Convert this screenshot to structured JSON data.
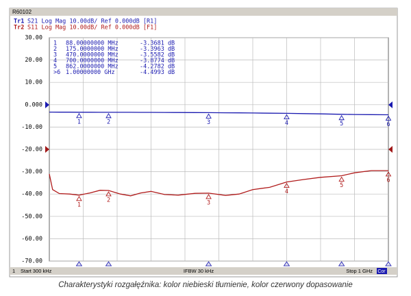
{
  "chart_data": {
    "type": "line",
    "instrument_title": "R60102",
    "trace_headers": [
      {
        "id": "Tr1",
        "text": "S21 Log Mag 10.00dB/ Ref 0.000dB [R1]",
        "color": "#1a1ab0"
      },
      {
        "id": "Tr2",
        "text": "S11 Log Mag 10.00dB/ Ref 0.000dB [F1]",
        "color": "#b01a1a"
      }
    ],
    "xlim": [
      0.3,
      1000
    ],
    "ylim": [
      -70,
      30
    ],
    "yticks": [
      {
        "value": 30,
        "label": "30.00"
      },
      {
        "value": 20,
        "label": "20.00"
      },
      {
        "value": 10,
        "label": "10.00"
      },
      {
        "value": 0,
        "label": "0.000"
      },
      {
        "value": -10,
        "label": "-10.00"
      },
      {
        "value": -20,
        "label": "-20.00"
      },
      {
        "value": -30,
        "label": "-30.00"
      },
      {
        "value": -40,
        "label": "-40.00"
      },
      {
        "value": -50,
        "label": "-50.00"
      },
      {
        "value": -60,
        "label": "-60.00"
      },
      {
        "value": -70,
        "label": "-70.00"
      }
    ],
    "grid": true,
    "x": [
      0.3,
      10,
      30,
      60,
      88,
      120,
      150,
      175,
      210,
      240,
      270,
      300,
      340,
      380,
      430,
      470,
      520,
      560,
      600,
      650,
      700,
      750,
      800,
      862,
      900,
      950,
      1000
    ],
    "series": [
      {
        "name": "S21",
        "color": "#1a1ab0",
        "values": [
          -3.3,
          -3.31,
          -3.33,
          -3.35,
          -3.37,
          -3.38,
          -3.39,
          -3.4,
          -3.41,
          -3.42,
          -3.44,
          -3.45,
          -3.48,
          -3.5,
          -3.53,
          -3.56,
          -3.61,
          -3.66,
          -3.72,
          -3.8,
          -3.88,
          -3.98,
          -4.12,
          -4.28,
          -4.38,
          -4.45,
          -4.5
        ]
      },
      {
        "name": "S11",
        "color": "#b01a1a",
        "values": [
          -31,
          -38,
          -39.8,
          -40,
          -40.5,
          -39.5,
          -38.3,
          -38.4,
          -40,
          -40.8,
          -39.5,
          -38.8,
          -40.2,
          -40.5,
          -39.7,
          -39.6,
          -40.6,
          -40,
          -38,
          -37,
          -34.6,
          -33.5,
          -32.5,
          -31.8,
          -30.5,
          -29.5,
          -29.5
        ]
      }
    ],
    "markers": {
      "ids": [
        "1",
        "2",
        "3",
        "4",
        "5",
        ">6"
      ],
      "tags": [
        "1",
        "2",
        "3",
        "4",
        "5",
        "6"
      ],
      "x": [
        88,
        175,
        470,
        700,
        862,
        1000
      ],
      "freq_labels": [
        "88.00000000 MHz",
        "175.0000000 MHz",
        "470.0000000 MHz",
        "700.0000000 MHz",
        "862.0000000 MHz",
        "1.00000000 GHz"
      ],
      "values": [
        -3.3681,
        -3.3963,
        -3.5582,
        -3.8774,
        -4.2782,
        -4.4993
      ],
      "value_labels": [
        "-3.3681 dB",
        "-3.3963 dB",
        "-3.5582 dB",
        "-3.8774 dB",
        "-4.2782 dB",
        "-4.4993 dB"
      ]
    },
    "footer": {
      "channel": "1",
      "start": "Start 300 kHz",
      "ifbw": "IFBW 30 kHz",
      "stop": "Stop 1 GHz",
      "cor": "Cor"
    },
    "caption": "Charakterystyki rozgałęźnika: kolor niebieski tłumienie, kolor czerwony dopasowanie"
  }
}
